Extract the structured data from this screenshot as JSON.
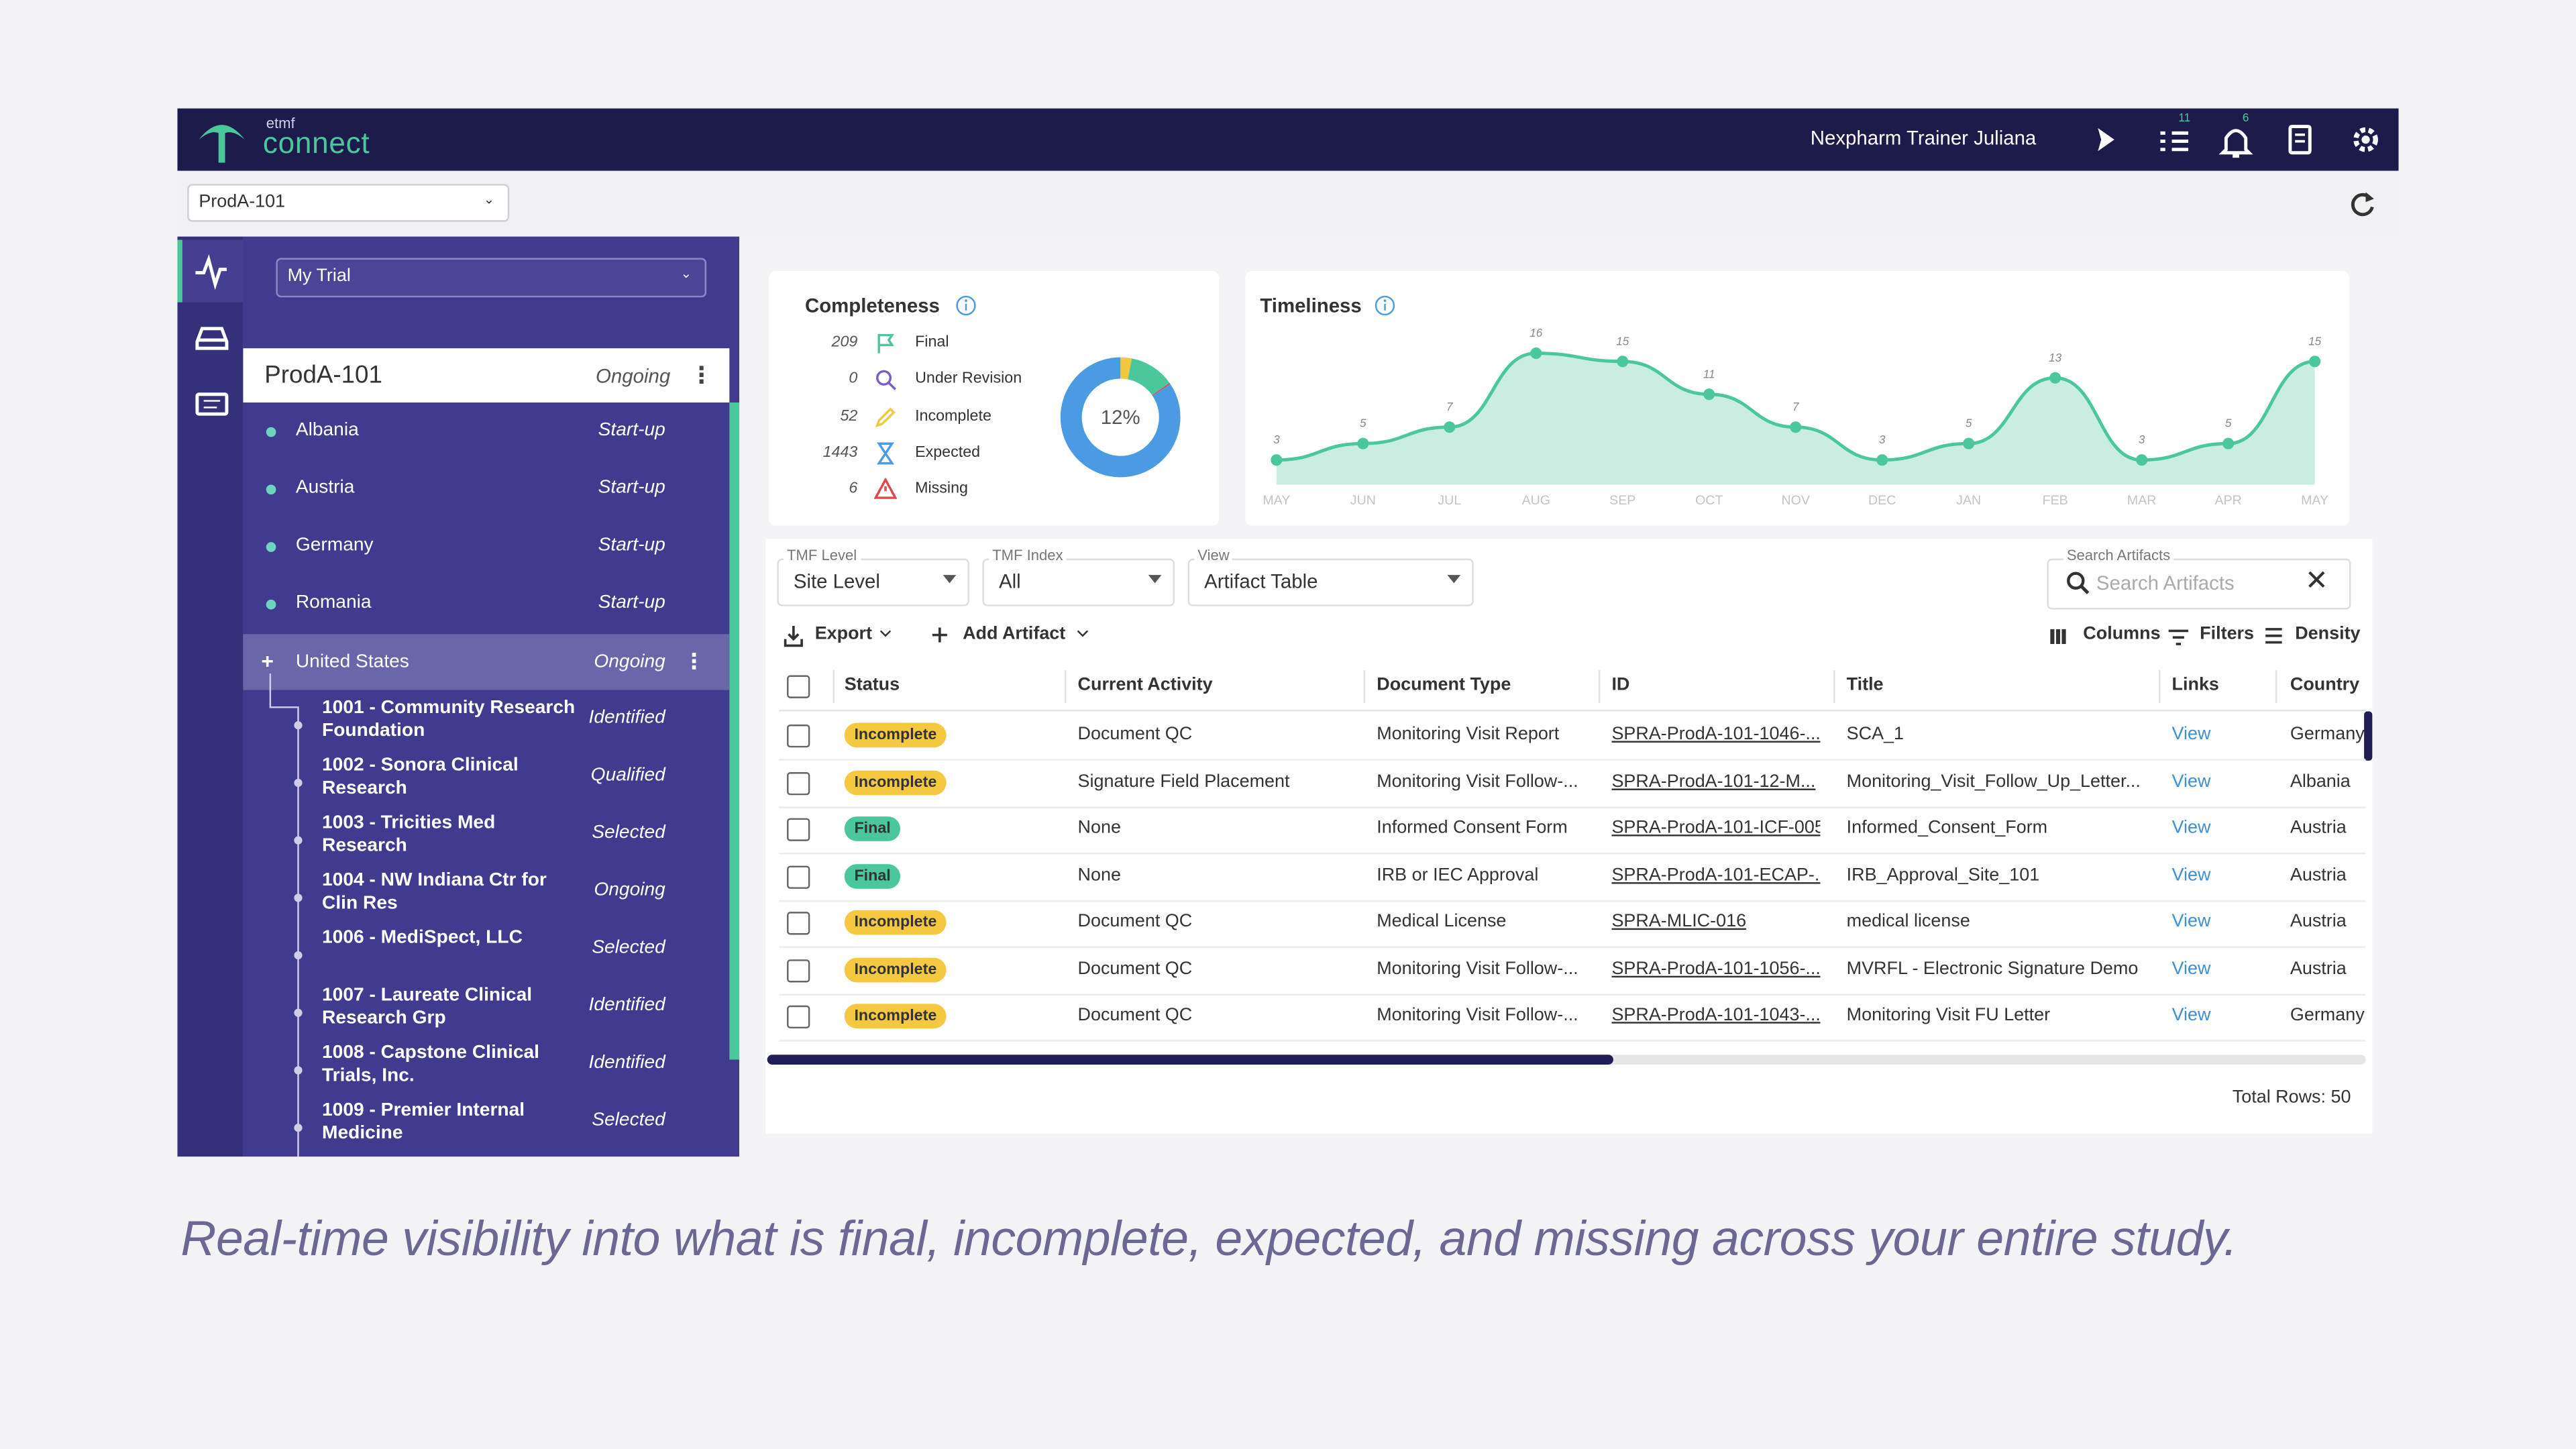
{
  "header": {
    "logo_small": "etmf",
    "logo": "connect",
    "user": "Nexpharm Trainer Juliana",
    "task_count": 11,
    "notification_count": 6
  },
  "project_select": "ProdA-101",
  "sidebar": {
    "trial_select": "My Trial",
    "study": {
      "name": "ProdA-101",
      "status": "Ongoing"
    },
    "countries": [
      {
        "name": "Albania",
        "status": "Start-up"
      },
      {
        "name": "Austria",
        "status": "Start-up"
      },
      {
        "name": "Germany",
        "status": "Start-up"
      },
      {
        "name": "Romania",
        "status": "Start-up"
      }
    ],
    "expanded_country": {
      "name": "United States",
      "status": "Ongoing"
    },
    "sites": [
      {
        "name": "1001 - Community Research Foundation",
        "status": "Identified"
      },
      {
        "name": "1002 - Sonora Clinical Research",
        "status": "Qualified"
      },
      {
        "name": "1003 - Tricities Med Research",
        "status": "Selected"
      },
      {
        "name": "1004 - NW Indiana Ctr for Clin Res",
        "status": "Ongoing"
      },
      {
        "name": "1006 - MediSpect, LLC",
        "status": "Selected"
      },
      {
        "name": "1007 - Laureate Clinical Research Grp",
        "status": "Identified"
      },
      {
        "name": "1008 - Capstone Clinical Trials, Inc.",
        "status": "Identified"
      },
      {
        "name": "1009 - Premier Internal Medicine",
        "status": "Selected"
      }
    ]
  },
  "completeness": {
    "title": "Completeness",
    "percent_label": "12%",
    "items": [
      {
        "count": 209,
        "label": "Final",
        "color": "#4cc79c"
      },
      {
        "count": 0,
        "label": "Under Revision",
        "color": "#7b5cc4"
      },
      {
        "count": 52,
        "label": "Incomplete",
        "color": "#f2c744"
      },
      {
        "count": 1443,
        "label": "Expected",
        "color": "#4a9be2"
      },
      {
        "count": 6,
        "label": "Missing",
        "color": "#e0474c"
      }
    ]
  },
  "timeliness": {
    "title": "Timeliness",
    "type": "area",
    "color": "#4cc79c",
    "ylim": [
      0,
      18
    ],
    "categories": [
      "MAY",
      "JUN",
      "JUL",
      "AUG",
      "SEP",
      "OCT",
      "NOV",
      "DEC",
      "JAN",
      "FEB",
      "MAR",
      "APR",
      "MAY"
    ],
    "values": [
      3,
      5,
      7,
      16,
      15,
      11,
      7,
      3,
      5,
      13,
      3,
      5,
      15
    ]
  },
  "filters": [
    {
      "label": "TMF Level",
      "value": "Site Level"
    },
    {
      "label": "TMF Index",
      "value": "All"
    },
    {
      "label": "View",
      "value": "Artifact Table"
    }
  ],
  "search": {
    "label": "Search Artifacts",
    "placeholder": "Search Artifacts"
  },
  "toolbar": {
    "export": "Export",
    "add": "Add Artifact",
    "columns": "Columns",
    "filters": "Filters",
    "density": "Density"
  },
  "table": {
    "status_colors": {
      "Incomplete": "#f5c842",
      "Final": "#4cc79c"
    },
    "columns": [
      "Status",
      "Current Activity",
      "Document Type",
      "ID",
      "Title",
      "Links",
      "Country"
    ],
    "rows": [
      [
        "Incomplete",
        "Document QC",
        "Monitoring Visit Report",
        "SPRA-ProdA-101-1046-...",
        "SCA_1",
        "View",
        "Germany"
      ],
      [
        "Incomplete",
        "Signature Field Placement",
        "Monitoring Visit Follow-...",
        "SPRA-ProdA-101-12-M...",
        "Monitoring_Visit_Follow_Up_Letter...",
        "View",
        "Albania"
      ],
      [
        "Final",
        "None",
        "Informed Consent Form",
        "SPRA-ProdA-101-ICF-005",
        "Informed_Consent_Form",
        "View",
        "Austria"
      ],
      [
        "Final",
        "None",
        "IRB or IEC Approval",
        "SPRA-ProdA-101-ECAP-...",
        "IRB_Approval_Site_101",
        "View",
        "Austria"
      ],
      [
        "Incomplete",
        "Document QC",
        "Medical License",
        "SPRA-MLIC-016",
        "medical license",
        "View",
        "Austria"
      ],
      [
        "Incomplete",
        "Document QC",
        "Monitoring Visit Follow-...",
        "SPRA-ProdA-101-1056-...",
        "MVRFL - Electronic Signature Demo",
        "View",
        "Austria"
      ],
      [
        "Incomplete",
        "Document QC",
        "Monitoring Visit Follow-...",
        "SPRA-ProdA-101-1043-...",
        "Monitoring Visit FU Letter",
        "View",
        "Germany"
      ]
    ],
    "total": "Total Rows: 50"
  },
  "caption": "Real-time visibility into what is final, incomplete, expected, and missing across your entire study."
}
